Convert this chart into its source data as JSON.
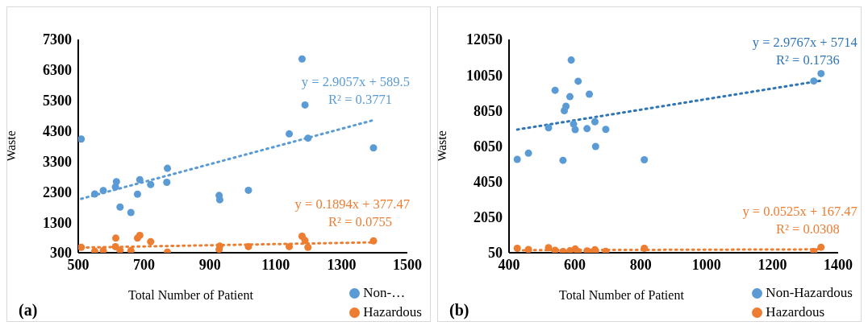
{
  "chart_data": [
    {
      "type": "scatter",
      "xlabel": "Total Number of Patient",
      "ylabel": "Waste",
      "xlim": [
        500,
        1500
      ],
      "xticks": [
        500,
        700,
        900,
        1100,
        1300,
        1500
      ],
      "ylim": [
        300,
        7300
      ],
      "yticks": [
        300,
        1300,
        2300,
        3300,
        4300,
        5300,
        6300,
        7300
      ],
      "grid": false,
      "legend": "bottom right",
      "marker": "circle",
      "annotations": [
        "(a)"
      ],
      "series": [
        {
          "name": "Non-…",
          "color": "#5b9bd5",
          "x": [
            509,
            550,
            576,
            616,
            613,
            627,
            660,
            680,
            687,
            720,
            771,
            769,
            928,
            930,
            1017,
            1141,
            1180,
            1189,
            1198,
            1397
          ],
          "values": [
            4030,
            2230,
            2340,
            2630,
            2460,
            1800,
            1620,
            2220,
            2700,
            2540,
            3070,
            2610,
            2180,
            2040,
            2350,
            4200,
            6660,
            5150,
            4060,
            3740
          ]
        },
        {
          "name": "Hazardous",
          "color": "#ed7d31",
          "x": [
            509,
            550,
            576,
            614,
            613,
            627,
            660,
            680,
            687,
            720,
            771,
            930,
            928,
            1017,
            1141,
            1180,
            1189,
            1198,
            1397
          ],
          "values": [
            480,
            350,
            370,
            780,
            500,
            380,
            370,
            780,
            870,
            660,
            320,
            520,
            410,
            500,
            500,
            840,
            700,
            480,
            690
          ]
        },
        {
          "type": "line",
          "name": "y = 2.9057x + 589.5\nR² = 0.3771",
          "color": "#5b9bd5",
          "line_style": "dotted",
          "marker": "none",
          "x": [
            509,
            1397
          ],
          "values": [
            2070,
            4650
          ]
        },
        {
          "type": "line",
          "name": "y = 0.1894x + 377.47\nR² = 0.0755",
          "color": "#ed7d31",
          "line_style": "dotted",
          "marker": "none",
          "x": [
            509,
            1397
          ],
          "values": [
            470,
            640
          ]
        }
      ]
    },
    {
      "type": "scatter",
      "xlabel": "Total Number of Patient",
      "ylabel": "Waste",
      "xlim": [
        400,
        1400
      ],
      "xticks": [
        400,
        600,
        800,
        1000,
        1200,
        1400
      ],
      "ylim": [
        50,
        12050
      ],
      "yticks": [
        50,
        2050,
        4050,
        6050,
        8050,
        10050,
        12050
      ],
      "grid": false,
      "legend": "bottom right",
      "marker": "circle",
      "annotations": [
        "(b)"
      ],
      "series": [
        {
          "name": "Non-Hazardous",
          "color": "#5b9bd5",
          "x": [
            425,
            459,
            520,
            540,
            564,
            568,
            573,
            585,
            589,
            596,
            601,
            610,
            637,
            644,
            661,
            663,
            694,
            811,
            1326,
            1348
          ],
          "values": [
            5300,
            5650,
            7080,
            9190,
            5250,
            8040,
            8290,
            8830,
            10890,
            7290,
            6980,
            9700,
            7030,
            8970,
            7420,
            6030,
            6990,
            5280,
            9710,
            10130
          ]
        },
        {
          "name": "Hazardous",
          "color": "#ed7d31",
          "x": [
            425,
            459,
            520,
            540,
            564,
            585,
            601,
            610,
            637,
            644,
            661,
            663,
            694,
            811,
            1326,
            1348
          ],
          "values": [
            300,
            230,
            330,
            190,
            120,
            160,
            260,
            120,
            150,
            90,
            220,
            120,
            130,
            300,
            120,
            360
          ]
        },
        {
          "type": "line",
          "name": "y = 2.9767x + 5714\nR² = 0.1736",
          "color": "#2e75b6",
          "line_style": "dotted",
          "marker": "none",
          "x": [
            425,
            1348
          ],
          "values": [
            6980,
            9730
          ]
        },
        {
          "type": "line",
          "name": "y = 0.0525x + 167.47\nR² = 0.0308",
          "color": "#ed7d31",
          "line_style": "dotted",
          "marker": "none",
          "x": [
            425,
            1348
          ],
          "values": [
            190,
            240
          ]
        }
      ]
    }
  ]
}
